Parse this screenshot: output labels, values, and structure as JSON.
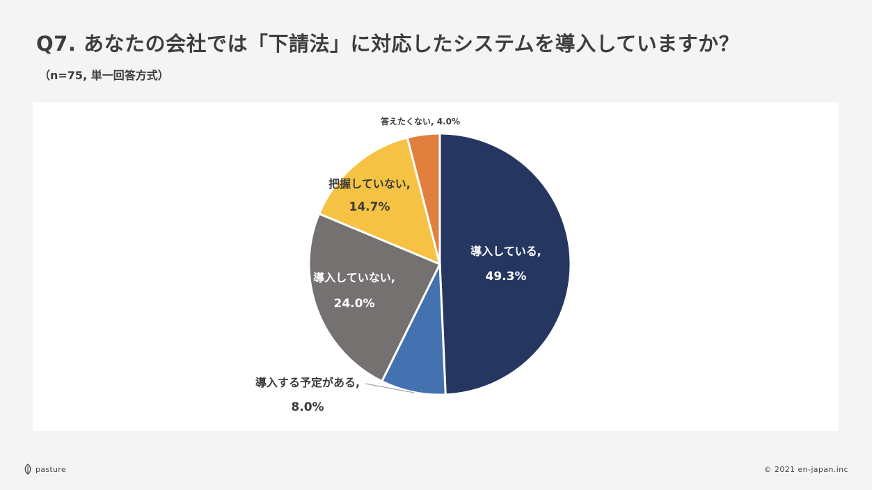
{
  "page": {
    "title": "Q7. あなたの会社では「下請法」に対応したシステムを導入していますか？",
    "subtitle": "（n=75, 単一回答方式）",
    "brand": "pasture",
    "copyright": "© 2021 en-japan.inc"
  },
  "icons": {
    "brand_logo": "leaf-icon"
  },
  "chart_data": {
    "type": "pie",
    "start": "12 o'clock, clockwise",
    "slices": [
      {
        "label": "導入している,",
        "value": 49.3,
        "value_label": "49.3%",
        "color": "#253660",
        "text_color": "#ffffff",
        "label_position": "inside"
      },
      {
        "label": "導入する予定がある,",
        "value": 8.0,
        "value_label": "8.0%",
        "color": "#4472b0",
        "text_color": "#3a3a3a",
        "label_position": "outside"
      },
      {
        "label": "導入していない,",
        "value": 24.0,
        "value_label": "24.0%",
        "color": "#767171",
        "text_color": "#ffffff",
        "label_position": "inside"
      },
      {
        "label": "把握していない,",
        "value": 14.7,
        "value_label": "14.7%",
        "color": "#f5c243",
        "text_color": "#3a3a3a",
        "label_position": "inside"
      },
      {
        "label": "答えたくない,",
        "value": 4.0,
        "value_label": "4.0%",
        "color": "#e07f3e",
        "text_color": "#3a3a3a",
        "label_position": "outside"
      }
    ]
  }
}
